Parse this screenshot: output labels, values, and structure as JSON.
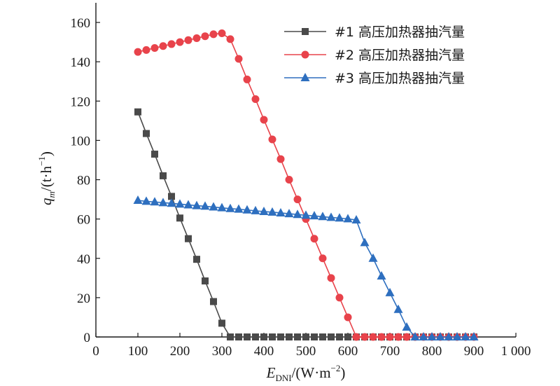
{
  "chart_data": {
    "type": "line",
    "xlabel": {
      "main": "E",
      "sub": "DNI",
      "unit": "/(W·m",
      "sup": "−2",
      "close": ")"
    },
    "ylabel": {
      "main": "q",
      "sub": "m",
      "unit": "/(t·h",
      "sup": "−1",
      "close": ")"
    },
    "xlim": [
      0,
      1000
    ],
    "ylim": [
      0,
      170
    ],
    "xticks": [
      0,
      100,
      200,
      300,
      400,
      500,
      600,
      700,
      800,
      900,
      1000
    ],
    "xtick_labels": [
      "0",
      "100",
      "200",
      "300",
      "400",
      "500",
      "600",
      "700",
      "800",
      "900",
      "1 000"
    ],
    "yticks": [
      0,
      20,
      40,
      60,
      80,
      100,
      120,
      140,
      160
    ],
    "ytick_labels": [
      "0",
      "20",
      "40",
      "60",
      "80",
      "100",
      "120",
      "140",
      "160"
    ],
    "grid": false,
    "legend_position": "top-right",
    "series": [
      {
        "name": "#1 高压加热器抽汽量",
        "marker": "square",
        "color": "#4a4a4a",
        "points": [
          [
            100,
            114.5
          ],
          [
            120,
            103.5
          ],
          [
            140,
            93
          ],
          [
            160,
            82
          ],
          [
            180,
            71.5
          ],
          [
            200,
            60.5
          ],
          [
            220,
            50
          ],
          [
            240,
            39.5
          ],
          [
            260,
            28.5
          ],
          [
            280,
            18
          ],
          [
            300,
            7
          ],
          [
            320,
            0
          ],
          [
            340,
            0
          ],
          [
            360,
            0
          ],
          [
            380,
            0
          ],
          [
            400,
            0
          ],
          [
            420,
            0
          ],
          [
            440,
            0
          ],
          [
            460,
            0
          ],
          [
            480,
            0
          ],
          [
            500,
            0
          ],
          [
            520,
            0
          ],
          [
            540,
            0
          ],
          [
            560,
            0
          ],
          [
            580,
            0
          ],
          [
            600,
            0
          ],
          [
            620,
            0
          ],
          [
            640,
            0
          ],
          [
            660,
            0
          ],
          [
            680,
            0
          ],
          [
            700,
            0
          ],
          [
            720,
            0
          ],
          [
            740,
            0
          ],
          [
            760,
            0
          ],
          [
            780,
            0
          ],
          [
            800,
            0
          ],
          [
            820,
            0
          ],
          [
            840,
            0
          ],
          [
            860,
            0
          ],
          [
            880,
            0
          ],
          [
            900,
            0
          ]
        ]
      },
      {
        "name": "#2 高压加热器抽汽量",
        "marker": "circle",
        "color": "#e8434b",
        "points": [
          [
            100,
            145
          ],
          [
            120,
            146
          ],
          [
            140,
            147
          ],
          [
            160,
            148
          ],
          [
            180,
            149
          ],
          [
            200,
            150
          ],
          [
            220,
            151
          ],
          [
            240,
            152
          ],
          [
            260,
            153
          ],
          [
            280,
            154
          ],
          [
            300,
            154.5
          ],
          [
            320,
            151.5
          ],
          [
            340,
            141.5
          ],
          [
            360,
            131
          ],
          [
            380,
            121
          ],
          [
            400,
            110.5
          ],
          [
            420,
            100.5
          ],
          [
            440,
            90.5
          ],
          [
            460,
            80
          ],
          [
            480,
            70
          ],
          [
            500,
            60
          ],
          [
            520,
            50
          ],
          [
            540,
            40
          ],
          [
            560,
            30
          ],
          [
            580,
            20
          ],
          [
            600,
            10
          ],
          [
            620,
            0
          ],
          [
            640,
            0
          ],
          [
            660,
            0
          ],
          [
            680,
            0
          ],
          [
            700,
            0
          ],
          [
            720,
            0
          ],
          [
            740,
            0
          ],
          [
            760,
            0
          ],
          [
            780,
            0
          ],
          [
            800,
            0
          ],
          [
            820,
            0
          ],
          [
            840,
            0
          ],
          [
            860,
            0
          ],
          [
            880,
            0
          ],
          [
            900,
            0
          ]
        ]
      },
      {
        "name": "#3 高压加热器抽汽量",
        "marker": "triangle",
        "color": "#2e6fbf",
        "points": [
          [
            100,
            69.5
          ],
          [
            120,
            69
          ],
          [
            140,
            68.7
          ],
          [
            160,
            68.3
          ],
          [
            180,
            68
          ],
          [
            200,
            67.6
          ],
          [
            220,
            67.2
          ],
          [
            240,
            66.8
          ],
          [
            260,
            66.5
          ],
          [
            280,
            66.1
          ],
          [
            300,
            65.7
          ],
          [
            320,
            65.3
          ],
          [
            340,
            65
          ],
          [
            360,
            64.6
          ],
          [
            380,
            64.2
          ],
          [
            400,
            63.8
          ],
          [
            420,
            63.5
          ],
          [
            440,
            63.1
          ],
          [
            460,
            62.7
          ],
          [
            480,
            62.3
          ],
          [
            500,
            61.9
          ],
          [
            520,
            61.6
          ],
          [
            540,
            61.2
          ],
          [
            560,
            60.8
          ],
          [
            580,
            60.5
          ],
          [
            600,
            60.1
          ],
          [
            620,
            59.5
          ],
          [
            640,
            48
          ],
          [
            660,
            40
          ],
          [
            680,
            31
          ],
          [
            700,
            22.5
          ],
          [
            720,
            14
          ],
          [
            740,
            5
          ],
          [
            760,
            0
          ],
          [
            780,
            0
          ],
          [
            800,
            0
          ],
          [
            820,
            0
          ],
          [
            840,
            0
          ],
          [
            860,
            0
          ],
          [
            880,
            0
          ],
          [
            900,
            0
          ]
        ]
      }
    ]
  }
}
